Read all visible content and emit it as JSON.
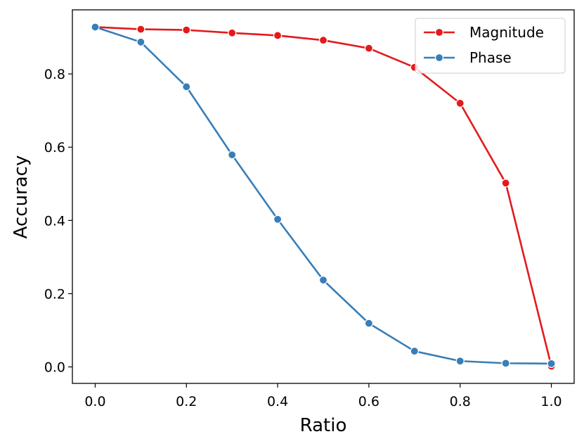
{
  "chart_data": {
    "type": "line",
    "title": "",
    "xlabel": "Ratio",
    "ylabel": "Accuracy",
    "xlim": [
      -0.05,
      1.05
    ],
    "ylim": [
      -0.045,
      0.975
    ],
    "xticks": [
      0.0,
      0.2,
      0.4,
      0.6,
      0.8,
      1.0
    ],
    "xtick_labels": [
      "0.0",
      "0.2",
      "0.4",
      "0.6",
      "0.8",
      "1.0"
    ],
    "yticks": [
      0.0,
      0.2,
      0.4,
      0.6,
      0.8
    ],
    "ytick_labels": [
      "0.0",
      "0.2",
      "0.4",
      "0.6",
      "0.8"
    ],
    "grid": false,
    "legend_position": "top-right",
    "x": [
      0.0,
      0.1,
      0.2,
      0.3,
      0.4,
      0.5,
      0.6,
      0.7,
      0.8,
      0.9,
      1.0
    ],
    "series": [
      {
        "name": "Magnitude",
        "color": "#e31a1c",
        "values": [
          0.928,
          0.922,
          0.92,
          0.912,
          0.905,
          0.892,
          0.87,
          0.818,
          0.72,
          0.502,
          0.002
        ]
      },
      {
        "name": "Phase",
        "color": "#377eb8",
        "values": [
          0.928,
          0.887,
          0.765,
          0.579,
          0.403,
          0.237,
          0.119,
          0.043,
          0.016,
          0.01,
          0.009
        ]
      }
    ]
  }
}
